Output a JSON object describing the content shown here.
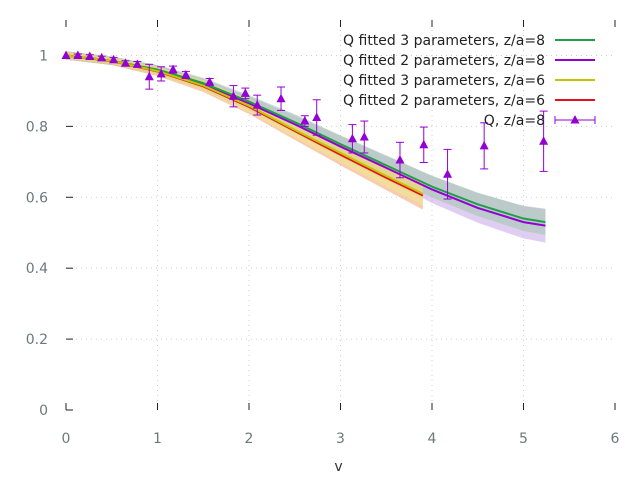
{
  "chart_data": {
    "type": "line",
    "title": "",
    "xlabel": "v",
    "ylabel": "",
    "xlim": [
      0,
      6
    ],
    "ylim": [
      0,
      1.1
    ],
    "x_ticks": [
      "0",
      "1",
      "2",
      "3",
      "4",
      "5",
      "6"
    ],
    "y_ticks": [
      "0",
      "0.2",
      "0.4",
      "0.6",
      "0.8",
      "1"
    ],
    "grid": true,
    "legend_position": "top-right",
    "series": [
      {
        "name": "Q fitted 3 parameters, z/a=8",
        "color": "#1f9e49",
        "band_color": "#9ec8a8",
        "x": [
          0,
          0.5,
          1,
          1.5,
          2,
          2.5,
          3,
          3.5,
          4,
          4.5,
          5,
          5.24
        ],
        "y": [
          1.0,
          0.985,
          0.96,
          0.922,
          0.87,
          0.812,
          0.75,
          0.69,
          0.63,
          0.58,
          0.54,
          0.53
        ],
        "band": [
          0.012,
          0.012,
          0.013,
          0.015,
          0.018,
          0.022,
          0.025,
          0.028,
          0.031,
          0.033,
          0.035,
          0.036
        ]
      },
      {
        "name": "Q fitted 2 parameters, z/a=8",
        "color": "#9400d3",
        "band_color": "#c6a6e8",
        "x": [
          0,
          0.5,
          1,
          1.5,
          2,
          2.5,
          3,
          3.5,
          4,
          4.5,
          5,
          5.24
        ],
        "y": [
          1.0,
          0.985,
          0.958,
          0.918,
          0.865,
          0.806,
          0.743,
          0.683,
          0.622,
          0.57,
          0.53,
          0.52
        ],
        "band": [
          0.012,
          0.012,
          0.014,
          0.016,
          0.02,
          0.025,
          0.03,
          0.034,
          0.038,
          0.042,
          0.046,
          0.048
        ]
      },
      {
        "name": "Q fitted 3 parameters, z/a=6",
        "color": "#c6c600",
        "band_color": "#ecec8a",
        "x": [
          0,
          0.5,
          1,
          1.5,
          2,
          2.5,
          3,
          3.5,
          3.9
        ],
        "y": [
          1.0,
          0.985,
          0.956,
          0.915,
          0.858,
          0.79,
          0.725,
          0.66,
          0.61
        ],
        "band": [
          0.01,
          0.01,
          0.012,
          0.015,
          0.018,
          0.022,
          0.026,
          0.03,
          0.033
        ]
      },
      {
        "name": "Q fitted 2 parameters, z/a=6",
        "color": "#e3101c",
        "band_color": "#f4a070",
        "x": [
          0,
          0.5,
          1,
          1.5,
          2,
          2.5,
          3,
          3.5,
          3.9
        ],
        "y": [
          1.0,
          0.984,
          0.955,
          0.913,
          0.855,
          0.787,
          0.72,
          0.655,
          0.605
        ],
        "band": [
          0.01,
          0.011,
          0.013,
          0.016,
          0.02,
          0.025,
          0.03,
          0.035,
          0.04
        ]
      },
      {
        "name": "Q, z/a=8",
        "color": "#9400d3",
        "points": [
          {
            "x": 0.0,
            "y": 1.0,
            "err": 0.0
          },
          {
            "x": 0.13,
            "y": 1.0,
            "err": 0.004
          },
          {
            "x": 0.26,
            "y": 0.997,
            "err": 0.005
          },
          {
            "x": 0.39,
            "y": 0.993,
            "err": 0.005
          },
          {
            "x": 0.52,
            "y": 0.988,
            "err": 0.006
          },
          {
            "x": 0.65,
            "y": 0.978,
            "err": 0.007
          },
          {
            "x": 0.78,
            "y": 0.975,
            "err": 0.008
          },
          {
            "x": 0.91,
            "y": 0.94,
            "err": 0.035
          },
          {
            "x": 1.04,
            "y": 0.948,
            "err": 0.02
          },
          {
            "x": 1.17,
            "y": 0.96,
            "err": 0.01
          },
          {
            "x": 1.31,
            "y": 0.945,
            "err": 0.01
          },
          {
            "x": 1.57,
            "y": 0.925,
            "err": 0.01
          },
          {
            "x": 1.83,
            "y": 0.885,
            "err": 0.03
          },
          {
            "x": 1.96,
            "y": 0.893,
            "err": 0.015
          },
          {
            "x": 2.09,
            "y": 0.86,
            "err": 0.028
          },
          {
            "x": 2.35,
            "y": 0.878,
            "err": 0.033
          },
          {
            "x": 2.61,
            "y": 0.815,
            "err": 0.015
          },
          {
            "x": 2.74,
            "y": 0.825,
            "err": 0.05
          },
          {
            "x": 3.13,
            "y": 0.765,
            "err": 0.04
          },
          {
            "x": 3.26,
            "y": 0.77,
            "err": 0.045
          },
          {
            "x": 3.65,
            "y": 0.705,
            "err": 0.05
          },
          {
            "x": 3.91,
            "y": 0.748,
            "err": 0.05
          },
          {
            "x": 4.17,
            "y": 0.665,
            "err": 0.07
          },
          {
            "x": 4.57,
            "y": 0.745,
            "err": 0.065
          },
          {
            "x": 5.22,
            "y": 0.758,
            "err": 0.085
          }
        ]
      }
    ]
  }
}
